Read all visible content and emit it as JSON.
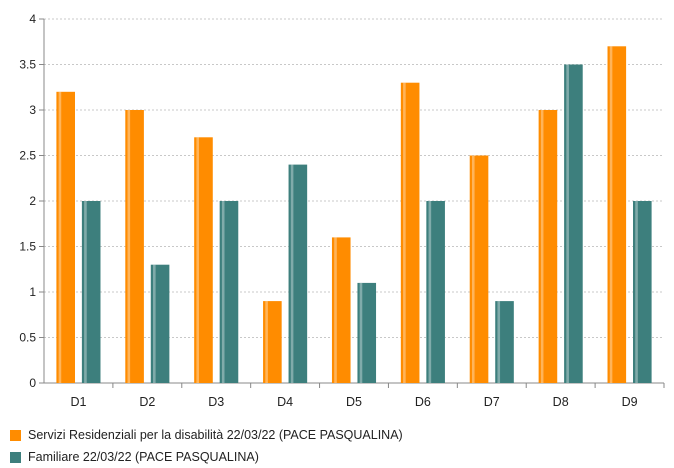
{
  "chart_data": {
    "type": "bar",
    "categories": [
      "D1",
      "D2",
      "D3",
      "D4",
      "D5",
      "D6",
      "D7",
      "D8",
      "D9"
    ],
    "series": [
      {
        "name": "Servizi Residenziali per la disabilità 22/03/22 (PACE PASQUALINA)",
        "color": "#FF8C00",
        "values": [
          3.2,
          3.0,
          2.7,
          0.9,
          1.6,
          3.3,
          2.5,
          3.0,
          3.7
        ]
      },
      {
        "name": "Familiare 22/03/22 (PACE PASQUALINA)",
        "color": "#3D7F7D",
        "values": [
          2.0,
          1.3,
          2.0,
          2.4,
          1.1,
          2.0,
          0.9,
          3.5,
          2.0
        ]
      }
    ],
    "ylim": [
      0,
      4
    ],
    "yticks": [
      "0",
      "0.5",
      "1",
      "1.5",
      "2",
      "2.5",
      "3",
      "3.5",
      "4"
    ],
    "grid": true,
    "legend_position": "bottom-left",
    "title": "",
    "xlabel": "",
    "ylabel": ""
  }
}
